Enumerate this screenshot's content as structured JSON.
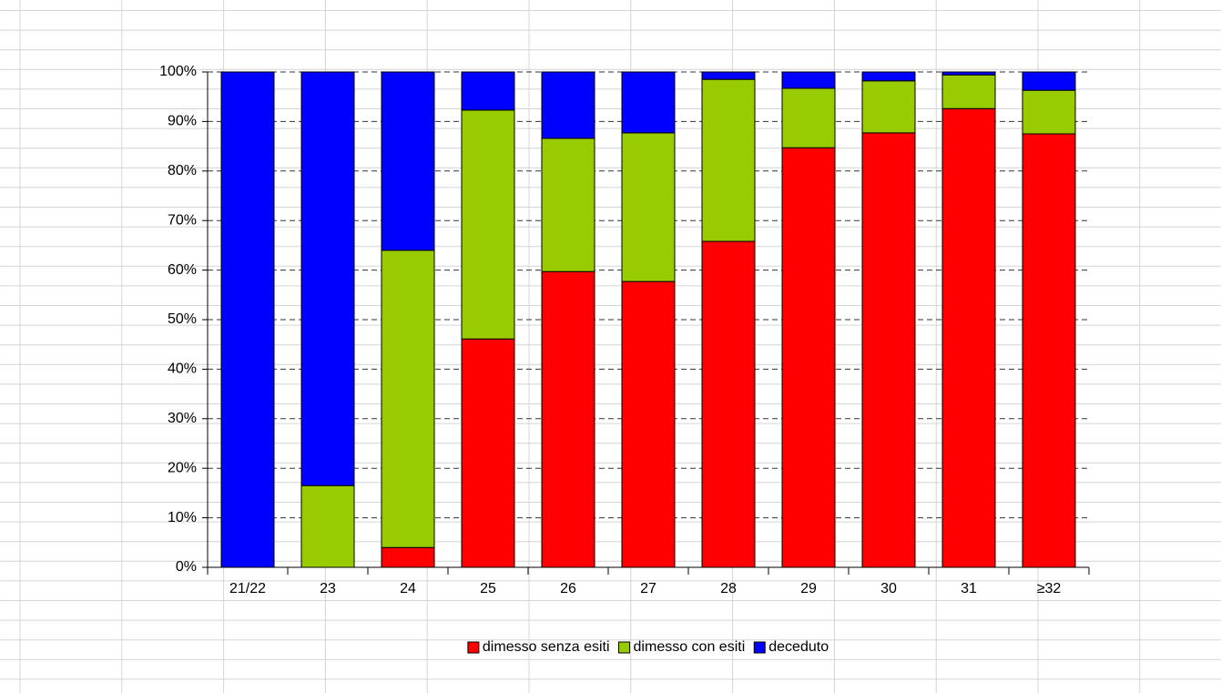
{
  "chart_data": {
    "type": "stacked-bar",
    "categories": [
      "21/22",
      "23",
      "24",
      "25",
      "26",
      "27",
      "28",
      "29",
      "30",
      "31",
      "≥32"
    ],
    "series": [
      {
        "name": "dimesso senza esiti",
        "color": "#ff0000",
        "values": [
          0,
          0,
          4.0,
          46.1,
          59.7,
          57.7,
          65.8,
          84.7,
          87.7,
          92.6,
          87.5
        ]
      },
      {
        "name": "dimesso con esiti",
        "color": "#99cc00",
        "values": [
          0,
          16.5,
          60.0,
          46.2,
          26.9,
          30.0,
          32.7,
          12.0,
          10.5,
          6.8,
          8.8
        ]
      },
      {
        "name": "deceduto",
        "color": "#0000ff",
        "values": [
          100,
          83.5,
          36.0,
          7.7,
          13.4,
          12.3,
          1.5,
          3.3,
          1.8,
          0.6,
          3.7
        ]
      }
    ],
    "ylim": [
      0,
      100
    ],
    "yticks": [
      {
        "value": 0,
        "label": "0%"
      },
      {
        "value": 10,
        "label": "10%"
      },
      {
        "value": 20,
        "label": "20%"
      },
      {
        "value": 30,
        "label": "30%"
      },
      {
        "value": 40,
        "label": "40%"
      },
      {
        "value": 50,
        "label": "50%"
      },
      {
        "value": 60,
        "label": "60%"
      },
      {
        "value": 70,
        "label": "70%"
      },
      {
        "value": 80,
        "label": "80%"
      },
      {
        "value": 90,
        "label": "90%"
      },
      {
        "value": 100,
        "label": "100%"
      }
    ],
    "grid": true,
    "legend": "bottom"
  }
}
